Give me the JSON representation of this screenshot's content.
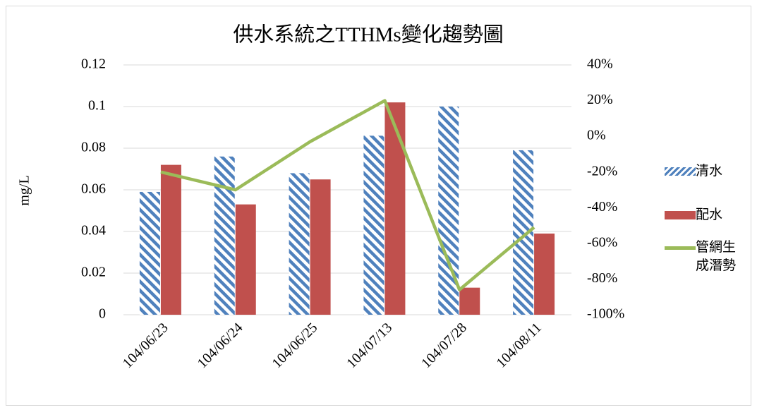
{
  "chart_data": {
    "type": "bar_line",
    "title": "供水系統之TTHMs變化趨勢圖",
    "y_label": "mg/L",
    "categories": [
      "104/06/23",
      "104/06/24",
      "104/06/25",
      "104/07/13",
      "104/07/28",
      "104/08/11"
    ],
    "series": [
      {
        "name": "清水",
        "color": "#4f81bd",
        "hatch": true,
        "type": "bar",
        "values": [
          0.059,
          0.076,
          0.068,
          0.086,
          0.1,
          0.079
        ]
      },
      {
        "name": "配水",
        "color": "#c0504d",
        "type": "bar",
        "values": [
          0.072,
          0.053,
          0.065,
          0.102,
          0.013,
          0.039
        ]
      },
      {
        "name": "管網生成潛勢",
        "color": "#9bbb59",
        "type": "line",
        "axis": "y2",
        "values": [
          -20,
          -30,
          -3,
          20,
          -86,
          -51
        ]
      }
    ],
    "ylim": [
      0,
      0.12
    ],
    "yticks": [
      0,
      0.02,
      0.04,
      0.06,
      0.08,
      0.1,
      0.12
    ],
    "y2lim": [
      -100,
      40
    ],
    "y2ticks": [
      {
        "value": -100,
        "label": "-100%"
      },
      {
        "value": -80,
        "label": "-80%"
      },
      {
        "value": -60,
        "label": "-60%"
      },
      {
        "value": -40,
        "label": "-40%"
      },
      {
        "value": -20,
        "label": "-20%"
      },
      {
        "value": 0,
        "label": "0%"
      },
      {
        "value": 20,
        "label": "20%"
      },
      {
        "value": 40,
        "label": "40%"
      }
    ],
    "grid": true,
    "legend": "right"
  }
}
